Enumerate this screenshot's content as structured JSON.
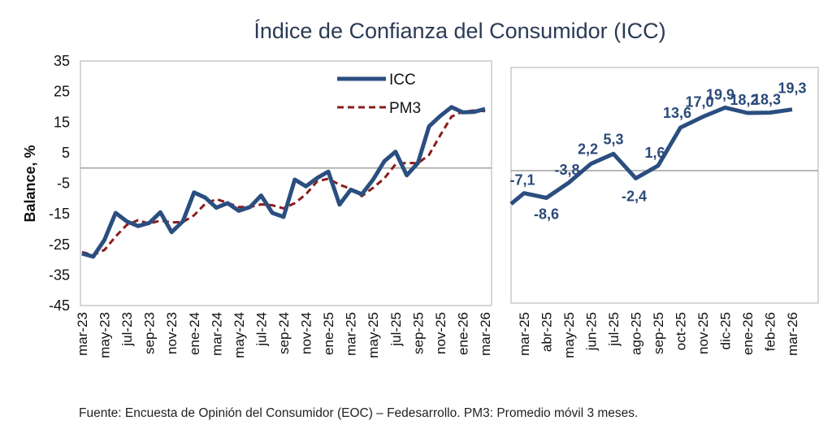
{
  "title": "Índice de Confianza del Consumidor (ICC)",
  "footnote": "Fuente: Encuesta de Opinión del Consumidor (EOC) – Fedesarrollo. PM3: Promedio móvil 3 meses.",
  "colors": {
    "icc": "#2b4e80",
    "pm3": "#8b1c1c",
    "title": "#2b3a55",
    "datalabel": "#2b4a7a",
    "frame": "#c8c8c8",
    "zero": "#a0a0a0"
  },
  "chart_data": [
    {
      "type": "line",
      "title": "",
      "xlabel": "",
      "ylabel": "Balance, %",
      "ylim": [
        -45,
        35
      ],
      "yticks": [
        35,
        25,
        15,
        5,
        -5,
        -15,
        -25,
        -35,
        -45
      ],
      "ytick_labels": [
        "35",
        "25",
        "15",
        "5",
        "-5",
        "-15",
        "-25",
        "-35",
        "-45"
      ],
      "zero_line": true,
      "grid": false,
      "legend_position": "top-right",
      "x": [
        "mar-23",
        "abr-23",
        "may-23",
        "jun-23",
        "jul-23",
        "ago-23",
        "sep-23",
        "oct-23",
        "nov-23",
        "dic-23",
        "ene-24",
        "feb-24",
        "mar-24",
        "abr-24",
        "may-24",
        "jun-24",
        "jul-24",
        "ago-24",
        "sep-24",
        "oct-24",
        "nov-24",
        "dic-24",
        "ene-25",
        "feb-25",
        "mar-25",
        "abr-25",
        "may-25",
        "jun-25",
        "jul-25",
        "ago-25",
        "sep-25",
        "oct-25",
        "nov-25",
        "dic-25",
        "ene-26",
        "feb-26",
        "mar-26"
      ],
      "xtick_labels": [
        "mar-23",
        "may-23",
        "jul-23",
        "sep-23",
        "nov-23",
        "ene-24",
        "mar-24",
        "may-24",
        "jul-24",
        "sep-24",
        "nov-24",
        "ene-25",
        "mar-25",
        "may-25",
        "jul-25",
        "sep-25",
        "nov-25",
        "ene-26",
        "mar-26"
      ],
      "series": [
        {
          "name": "ICC",
          "style": "solid",
          "values": [
            -28.0,
            -29.0,
            -23.5,
            -14.7,
            -17.5,
            -19.0,
            -18.0,
            -14.5,
            -21.0,
            -17.5,
            -8.0,
            -9.7,
            -13.0,
            -11.5,
            -14.0,
            -12.8,
            -9.0,
            -14.7,
            -16.0,
            -3.8,
            -6.0,
            -3.3,
            -1.2,
            -12.0,
            -7.1,
            -8.6,
            -3.8,
            2.2,
            5.3,
            -2.4,
            1.6,
            13.6,
            17.0,
            19.9,
            18.2,
            18.3,
            19.3
          ]
        },
        {
          "name": "PM3",
          "style": "dashed",
          "values": [
            -27.5,
            -28.5,
            -26.8,
            -22.4,
            -18.6,
            -17.1,
            -18.2,
            -17.2,
            -17.8,
            -17.7,
            -15.5,
            -11.7,
            -10.2,
            -11.4,
            -12.8,
            -12.8,
            -11.9,
            -12.2,
            -13.2,
            -11.5,
            -8.6,
            -4.4,
            -3.5,
            -5.5,
            -6.8,
            -9.2,
            -6.5,
            -3.4,
            1.2,
            1.7,
            1.5,
            4.3,
            10.7,
            16.8,
            18.4,
            18.8,
            18.6
          ]
        }
      ]
    },
    {
      "type": "line",
      "title": "",
      "xlabel": "",
      "ylabel": "",
      "ylim": [
        -45,
        35
      ],
      "zero_line": true,
      "grid": false,
      "x": [
        "mar-25",
        "abr-25",
        "may-25",
        "jun-25",
        "jul-25",
        "ago-25",
        "sep-25",
        "oct-25",
        "nov-25",
        "dic-25",
        "ene-26",
        "feb-26",
        "mar-26"
      ],
      "xtick_labels": [
        "mar-25",
        "abr-25",
        "may-25",
        "jun-25",
        "jul-25",
        "ago-25",
        "sep-25",
        "oct-25",
        "nov-25",
        "dic-25",
        "ene-26",
        "feb-26",
        "mar-26"
      ],
      "series": [
        {
          "name": "ICC",
          "style": "solid",
          "start_value": -10.5,
          "values": [
            -7.1,
            -8.6,
            -3.8,
            2.2,
            5.3,
            -2.4,
            1.6,
            13.6,
            17.0,
            19.9,
            18.2,
            18.3,
            19.3
          ]
        }
      ],
      "data_labels": [
        "-7,1",
        "-8,6",
        "-3,8",
        "2,2",
        "5,3",
        "-2,4",
        "1,6",
        "13,6",
        "17,0",
        "19,9",
        "18,2",
        "18,3",
        "19,3"
      ]
    }
  ]
}
